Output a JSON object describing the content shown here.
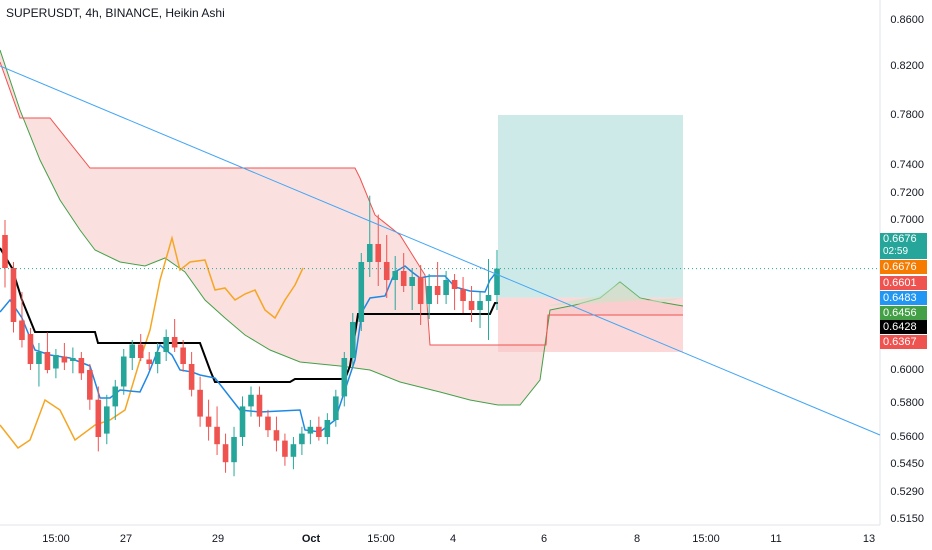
{
  "header": {
    "title": "SUPERUSDT, 4h, BINANCE, Heikin Ashi"
  },
  "chart_data": {
    "type": "candlestick",
    "symbol": "SUPERUSDT",
    "interval": "4h",
    "exchange": "BINANCE",
    "style": "Heikin Ashi",
    "y_ticks": [
      "0.8600",
      "0.8200",
      "0.7800",
      "0.7400",
      "0.7200",
      "0.7000",
      "0.6000",
      "0.5800",
      "0.5600",
      "0.5450",
      "0.5290",
      "0.5150"
    ],
    "x_ticks": [
      "15:00",
      "27",
      "29",
      "Oct",
      "15:00",
      "4",
      "6",
      "8",
      "15:00",
      "11",
      "13"
    ],
    "price_badges": [
      {
        "label": "0.6676",
        "sub": "02:59",
        "color": "#26a69a",
        "value": 0.6676
      },
      {
        "label": "0.6676",
        "color": "#f57c00",
        "value": 0.6676
      },
      {
        "label": "0.6601",
        "color": "#ef5350",
        "value": 0.6601
      },
      {
        "label": "0.6483",
        "color": "#2196f3",
        "value": 0.6483
      },
      {
        "label": "0.6456",
        "color": "#43a047",
        "value": 0.6456
      },
      {
        "label": "0.6428",
        "color": "#000000",
        "value": 0.6428
      },
      {
        "label": "0.6367",
        "color": "#ef5350",
        "value": 0.6367
      }
    ],
    "position": {
      "entry": 0.6483,
      "target": 0.78,
      "stop": 0.612
    },
    "colors": {
      "up": "#26a69a",
      "down": "#ef5350",
      "conversion": "#2196f3",
      "base": "#000000",
      "lagging": "#f5a623",
      "span_a": "#43a047",
      "span_b": "#ef5350",
      "trendline": "#42a5f5",
      "profit_zone": "#b2dfdb",
      "loss_zone": "#fbc8c8"
    },
    "candles": [
      [
        0.69,
        0.7,
        0.655,
        0.668
      ],
      [
        0.668,
        0.672,
        0.625,
        0.632
      ],
      [
        0.633,
        0.652,
        0.615,
        0.62
      ],
      [
        0.624,
        0.628,
        0.6,
        0.604
      ],
      [
        0.604,
        0.618,
        0.59,
        0.612
      ],
      [
        0.612,
        0.625,
        0.598,
        0.6
      ],
      [
        0.601,
        0.614,
        0.595,
        0.61
      ],
      [
        0.609,
        0.618,
        0.6,
        0.605
      ],
      [
        0.606,
        0.615,
        0.598,
        0.608
      ],
      [
        0.608,
        0.612,
        0.594,
        0.598
      ],
      [
        0.6,
        0.604,
        0.576,
        0.582
      ],
      [
        0.582,
        0.59,
        0.552,
        0.56
      ],
      [
        0.562,
        0.585,
        0.556,
        0.578
      ],
      [
        0.578,
        0.594,
        0.57,
        0.59
      ],
      [
        0.59,
        0.614,
        0.585,
        0.609
      ],
      [
        0.608,
        0.62,
        0.6,
        0.617
      ],
      [
        0.617,
        0.624,
        0.606,
        0.608
      ],
      [
        0.607,
        0.612,
        0.6,
        0.604
      ],
      [
        0.604,
        0.618,
        0.598,
        0.612
      ],
      [
        0.612,
        0.627,
        0.606,
        0.622
      ],
      [
        0.622,
        0.634,
        0.612,
        0.615
      ],
      [
        0.615,
        0.62,
        0.599,
        0.604
      ],
      [
        0.604,
        0.612,
        0.584,
        0.588
      ],
      [
        0.588,
        0.596,
        0.566,
        0.572
      ],
      [
        0.572,
        0.582,
        0.558,
        0.566
      ],
      [
        0.566,
        0.578,
        0.55,
        0.556
      ],
      [
        0.556,
        0.562,
        0.54,
        0.546
      ],
      [
        0.546,
        0.566,
        0.538,
        0.56
      ],
      [
        0.56,
        0.584,
        0.555,
        0.578
      ],
      [
        0.578,
        0.59,
        0.572,
        0.585
      ],
      [
        0.585,
        0.59,
        0.566,
        0.572
      ],
      [
        0.572,
        0.576,
        0.56,
        0.564
      ],
      [
        0.564,
        0.572,
        0.552,
        0.558
      ],
      [
        0.558,
        0.562,
        0.544,
        0.549
      ],
      [
        0.549,
        0.56,
        0.542,
        0.556
      ],
      [
        0.556,
        0.566,
        0.55,
        0.562
      ],
      [
        0.562,
        0.57,
        0.556,
        0.566
      ],
      [
        0.566,
        0.572,
        0.558,
        0.56
      ],
      [
        0.56,
        0.574,
        0.556,
        0.57
      ],
      [
        0.57,
        0.588,
        0.566,
        0.584
      ],
      [
        0.584,
        0.612,
        0.578,
        0.608
      ],
      [
        0.608,
        0.638,
        0.602,
        0.632
      ],
      [
        0.632,
        0.678,
        0.626,
        0.672
      ],
      [
        0.672,
        0.718,
        0.662,
        0.684
      ],
      [
        0.684,
        0.704,
        0.656,
        0.672
      ],
      [
        0.672,
        0.69,
        0.648,
        0.66
      ],
      [
        0.66,
        0.676,
        0.64,
        0.666
      ],
      [
        0.666,
        0.678,
        0.652,
        0.656
      ],
      [
        0.656,
        0.668,
        0.64,
        0.662
      ],
      [
        0.662,
        0.67,
        0.63,
        0.644
      ],
      [
        0.644,
        0.664,
        0.634,
        0.656
      ],
      [
        0.656,
        0.672,
        0.644,
        0.65
      ],
      [
        0.65,
        0.666,
        0.644,
        0.66
      ],
      [
        0.66,
        0.664,
        0.64,
        0.654
      ],
      [
        0.654,
        0.662,
        0.638,
        0.646
      ],
      [
        0.646,
        0.656,
        0.632,
        0.64
      ],
      [
        0.64,
        0.652,
        0.628,
        0.646
      ],
      [
        0.646,
        0.674,
        0.62,
        0.65
      ],
      [
        0.65,
        0.68,
        0.64,
        0.6676
      ]
    ]
  }
}
